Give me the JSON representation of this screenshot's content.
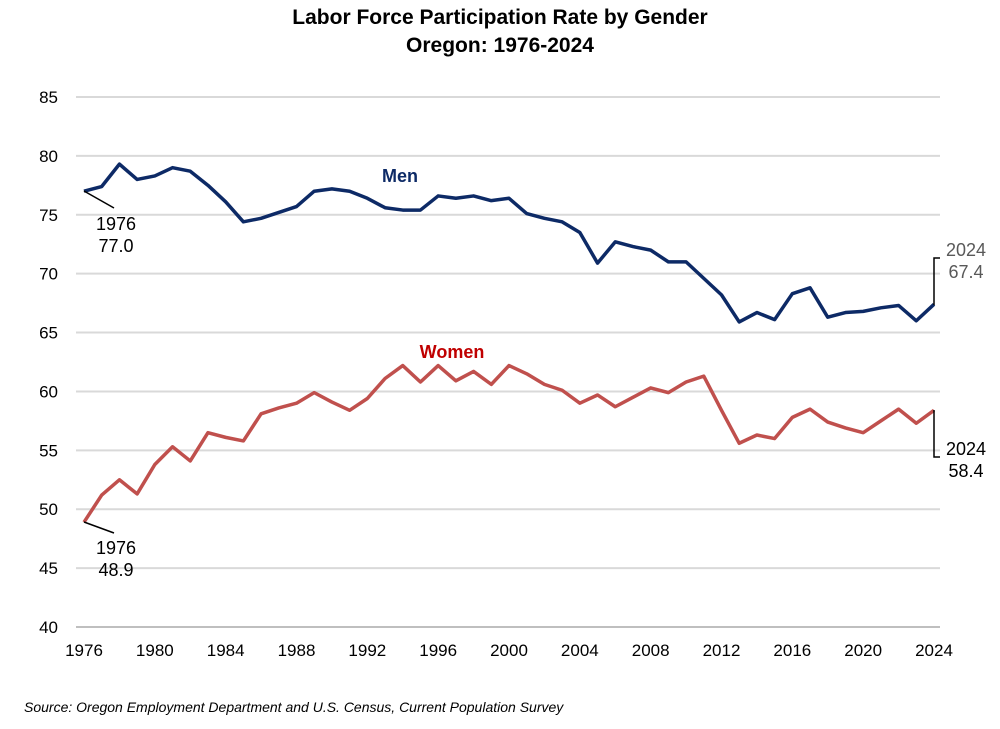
{
  "chart_data": {
    "type": "line",
    "title": "Labor Force Participation Rate by Gender",
    "subtitle": "Oregon: 1976-2024",
    "xlabel": "",
    "ylabel": "",
    "ylim": [
      40,
      85
    ],
    "xlim": [
      1976,
      2024
    ],
    "yticks": [
      "40",
      "45",
      "50",
      "55",
      "60",
      "65",
      "70",
      "75",
      "80",
      "85"
    ],
    "xticks": [
      "1976",
      "1980",
      "1984",
      "1988",
      "1992",
      "1996",
      "2000",
      "2004",
      "2008",
      "2012",
      "2016",
      "2020",
      "2024"
    ],
    "grid": true,
    "x": [
      1976,
      1977,
      1978,
      1979,
      1980,
      1981,
      1982,
      1983,
      1984,
      1985,
      1986,
      1987,
      1988,
      1989,
      1990,
      1991,
      1992,
      1993,
      1994,
      1995,
      1996,
      1997,
      1998,
      1999,
      2000,
      2001,
      2002,
      2003,
      2004,
      2005,
      2006,
      2007,
      2008,
      2009,
      2010,
      2011,
      2012,
      2013,
      2014,
      2015,
      2016,
      2017,
      2018,
      2019,
      2020,
      2021,
      2022,
      2023,
      2024
    ],
    "series": [
      {
        "name": "Men",
        "color": "#0d2a66",
        "label_color": "#0d2a66",
        "values": [
          77.0,
          77.4,
          79.3,
          78.0,
          78.3,
          79.0,
          78.7,
          77.5,
          76.1,
          74.4,
          74.7,
          75.2,
          75.7,
          77.0,
          77.2,
          77.0,
          76.4,
          75.6,
          75.4,
          75.4,
          76.6,
          76.4,
          76.6,
          76.2,
          76.4,
          75.1,
          74.7,
          74.4,
          73.5,
          70.9,
          72.7,
          72.3,
          72.0,
          71.0,
          71.0,
          69.6,
          68.2,
          65.9,
          66.7,
          66.1,
          68.3,
          68.8,
          66.3,
          66.7,
          66.8,
          67.1,
          67.3,
          66.0,
          67.4
        ]
      },
      {
        "name": "Women",
        "color": "#c0504d",
        "label_color": "#c00000",
        "values": [
          48.9,
          51.2,
          52.5,
          51.3,
          53.8,
          55.3,
          54.1,
          56.5,
          56.1,
          55.8,
          58.1,
          58.6,
          59.0,
          59.9,
          59.1,
          58.4,
          59.4,
          61.1,
          62.2,
          60.8,
          62.2,
          60.9,
          61.7,
          60.6,
          62.2,
          61.5,
          60.6,
          60.1,
          59.0,
          59.7,
          58.7,
          59.5,
          60.3,
          59.9,
          60.8,
          61.3,
          58.4,
          55.6,
          56.3,
          56.0,
          57.8,
          58.5,
          57.4,
          56.9,
          56.5,
          57.5,
          58.5,
          57.3,
          58.4
        ]
      }
    ],
    "annotations": {
      "men_start": {
        "year": "1976",
        "value": "77.0"
      },
      "men_end": {
        "year": "2024",
        "value": "67.4"
      },
      "women_start": {
        "year": "1976",
        "value": "48.9"
      },
      "women_end": {
        "year": "2024",
        "value": "58.4"
      }
    },
    "source": "Source: Oregon Employment Department and U.S. Census, Current Population Survey"
  }
}
